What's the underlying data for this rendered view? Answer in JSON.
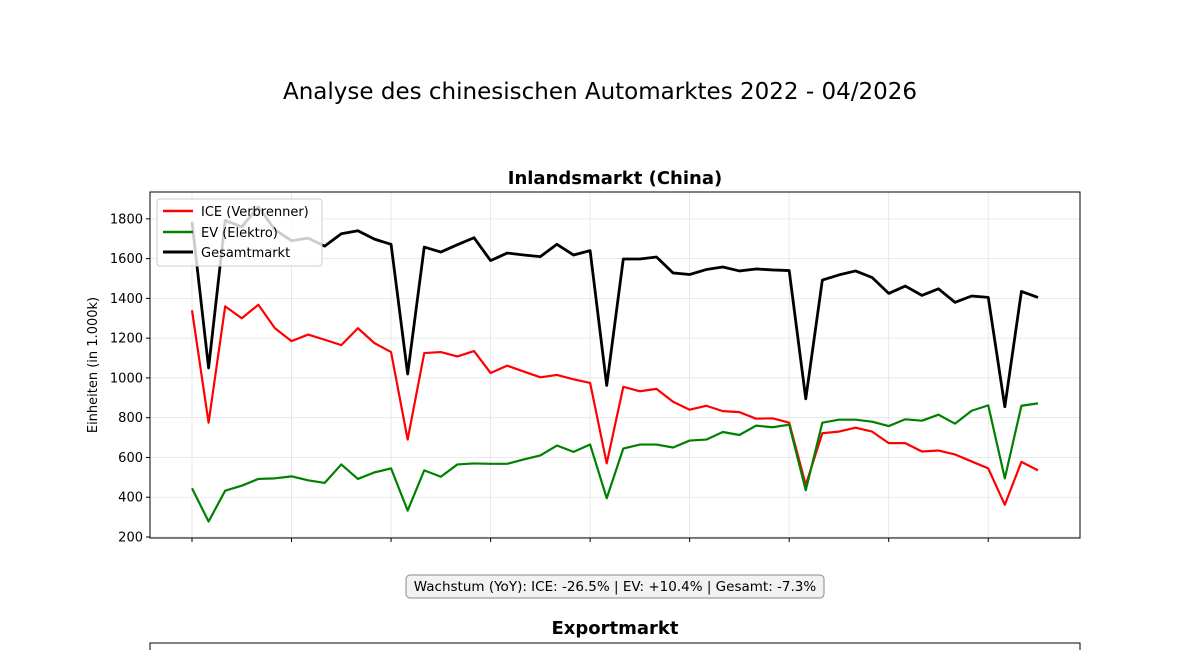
{
  "figure": {
    "title": "Analyse des chinesischen Automarktes 2022 - 04/2026"
  },
  "inland": {
    "annotation": "Wachstum (YoY): ICE: -26.5% | EV: +10.4% | Gesamt: -7.3%"
  },
  "export": {
    "title": "Exportmarkt"
  },
  "chart_data": [
    {
      "type": "line",
      "title": "Inlandsmarkt (China)",
      "xlabel": "",
      "ylabel": "Einheiten (in 1.000k)",
      "ylim": [
        195,
        1935
      ],
      "yticks": [
        200,
        400,
        600,
        800,
        1000,
        1200,
        1400,
        1600,
        1800
      ],
      "grid": true,
      "legend_position": "upper-left",
      "x": [
        1,
        2,
        3,
        4,
        5,
        6,
        7,
        8,
        9,
        10,
        11,
        12,
        13,
        14,
        15,
        16,
        17,
        18,
        19,
        20,
        21,
        22,
        23,
        24,
        25,
        26,
        27,
        28,
        29,
        30,
        31,
        32,
        33,
        34,
        35,
        36,
        37,
        38,
        39,
        40,
        41,
        42,
        43,
        44,
        45,
        46,
        47,
        48,
        49,
        50,
        51,
        52
      ],
      "series": [
        {
          "name": "ICE (Verbrenner)",
          "color": "#ff0000",
          "values": [
            1340,
            775,
            1360,
            1300,
            1368,
            1250,
            1185,
            1218,
            1192,
            1165,
            1250,
            1175,
            1130,
            690,
            1125,
            1130,
            1108,
            1135,
            1025,
            1062,
            1032,
            1003,
            1015,
            993,
            975,
            570,
            955,
            933,
            945,
            880,
            840,
            860,
            833,
            828,
            795,
            797,
            775,
            462,
            722,
            730,
            750,
            730,
            672,
            672,
            630,
            635,
            615,
            580,
            545,
            362,
            578,
            535
          ]
        },
        {
          "name": "EV (Elektro)",
          "color": "#008000",
          "values": [
            445,
            278,
            433,
            458,
            492,
            495,
            505,
            485,
            472,
            565,
            492,
            525,
            545,
            333,
            535,
            503,
            565,
            570,
            568,
            568,
            590,
            610,
            660,
            628,
            665,
            395,
            645,
            665,
            665,
            650,
            685,
            690,
            728,
            713,
            760,
            752,
            765,
            435,
            775,
            790,
            790,
            780,
            758,
            792,
            785,
            815,
            770,
            835,
            862,
            495,
            860,
            872
          ]
        },
        {
          "name": "Gesamtmarkt",
          "color": "#000000",
          "values": [
            1785,
            1050,
            1792,
            1760,
            1860,
            1745,
            1690,
            1703,
            1663,
            1725,
            1740,
            1698,
            1672,
            1020,
            1658,
            1633,
            1670,
            1705,
            1590,
            1628,
            1618,
            1610,
            1672,
            1618,
            1640,
            962,
            1598,
            1598,
            1608,
            1528,
            1520,
            1545,
            1558,
            1538,
            1548,
            1543,
            1540,
            895,
            1492,
            1518,
            1538,
            1505,
            1425,
            1462,
            1415,
            1448,
            1380,
            1412,
            1405,
            855,
            1435,
            1405
          ]
        }
      ]
    }
  ]
}
